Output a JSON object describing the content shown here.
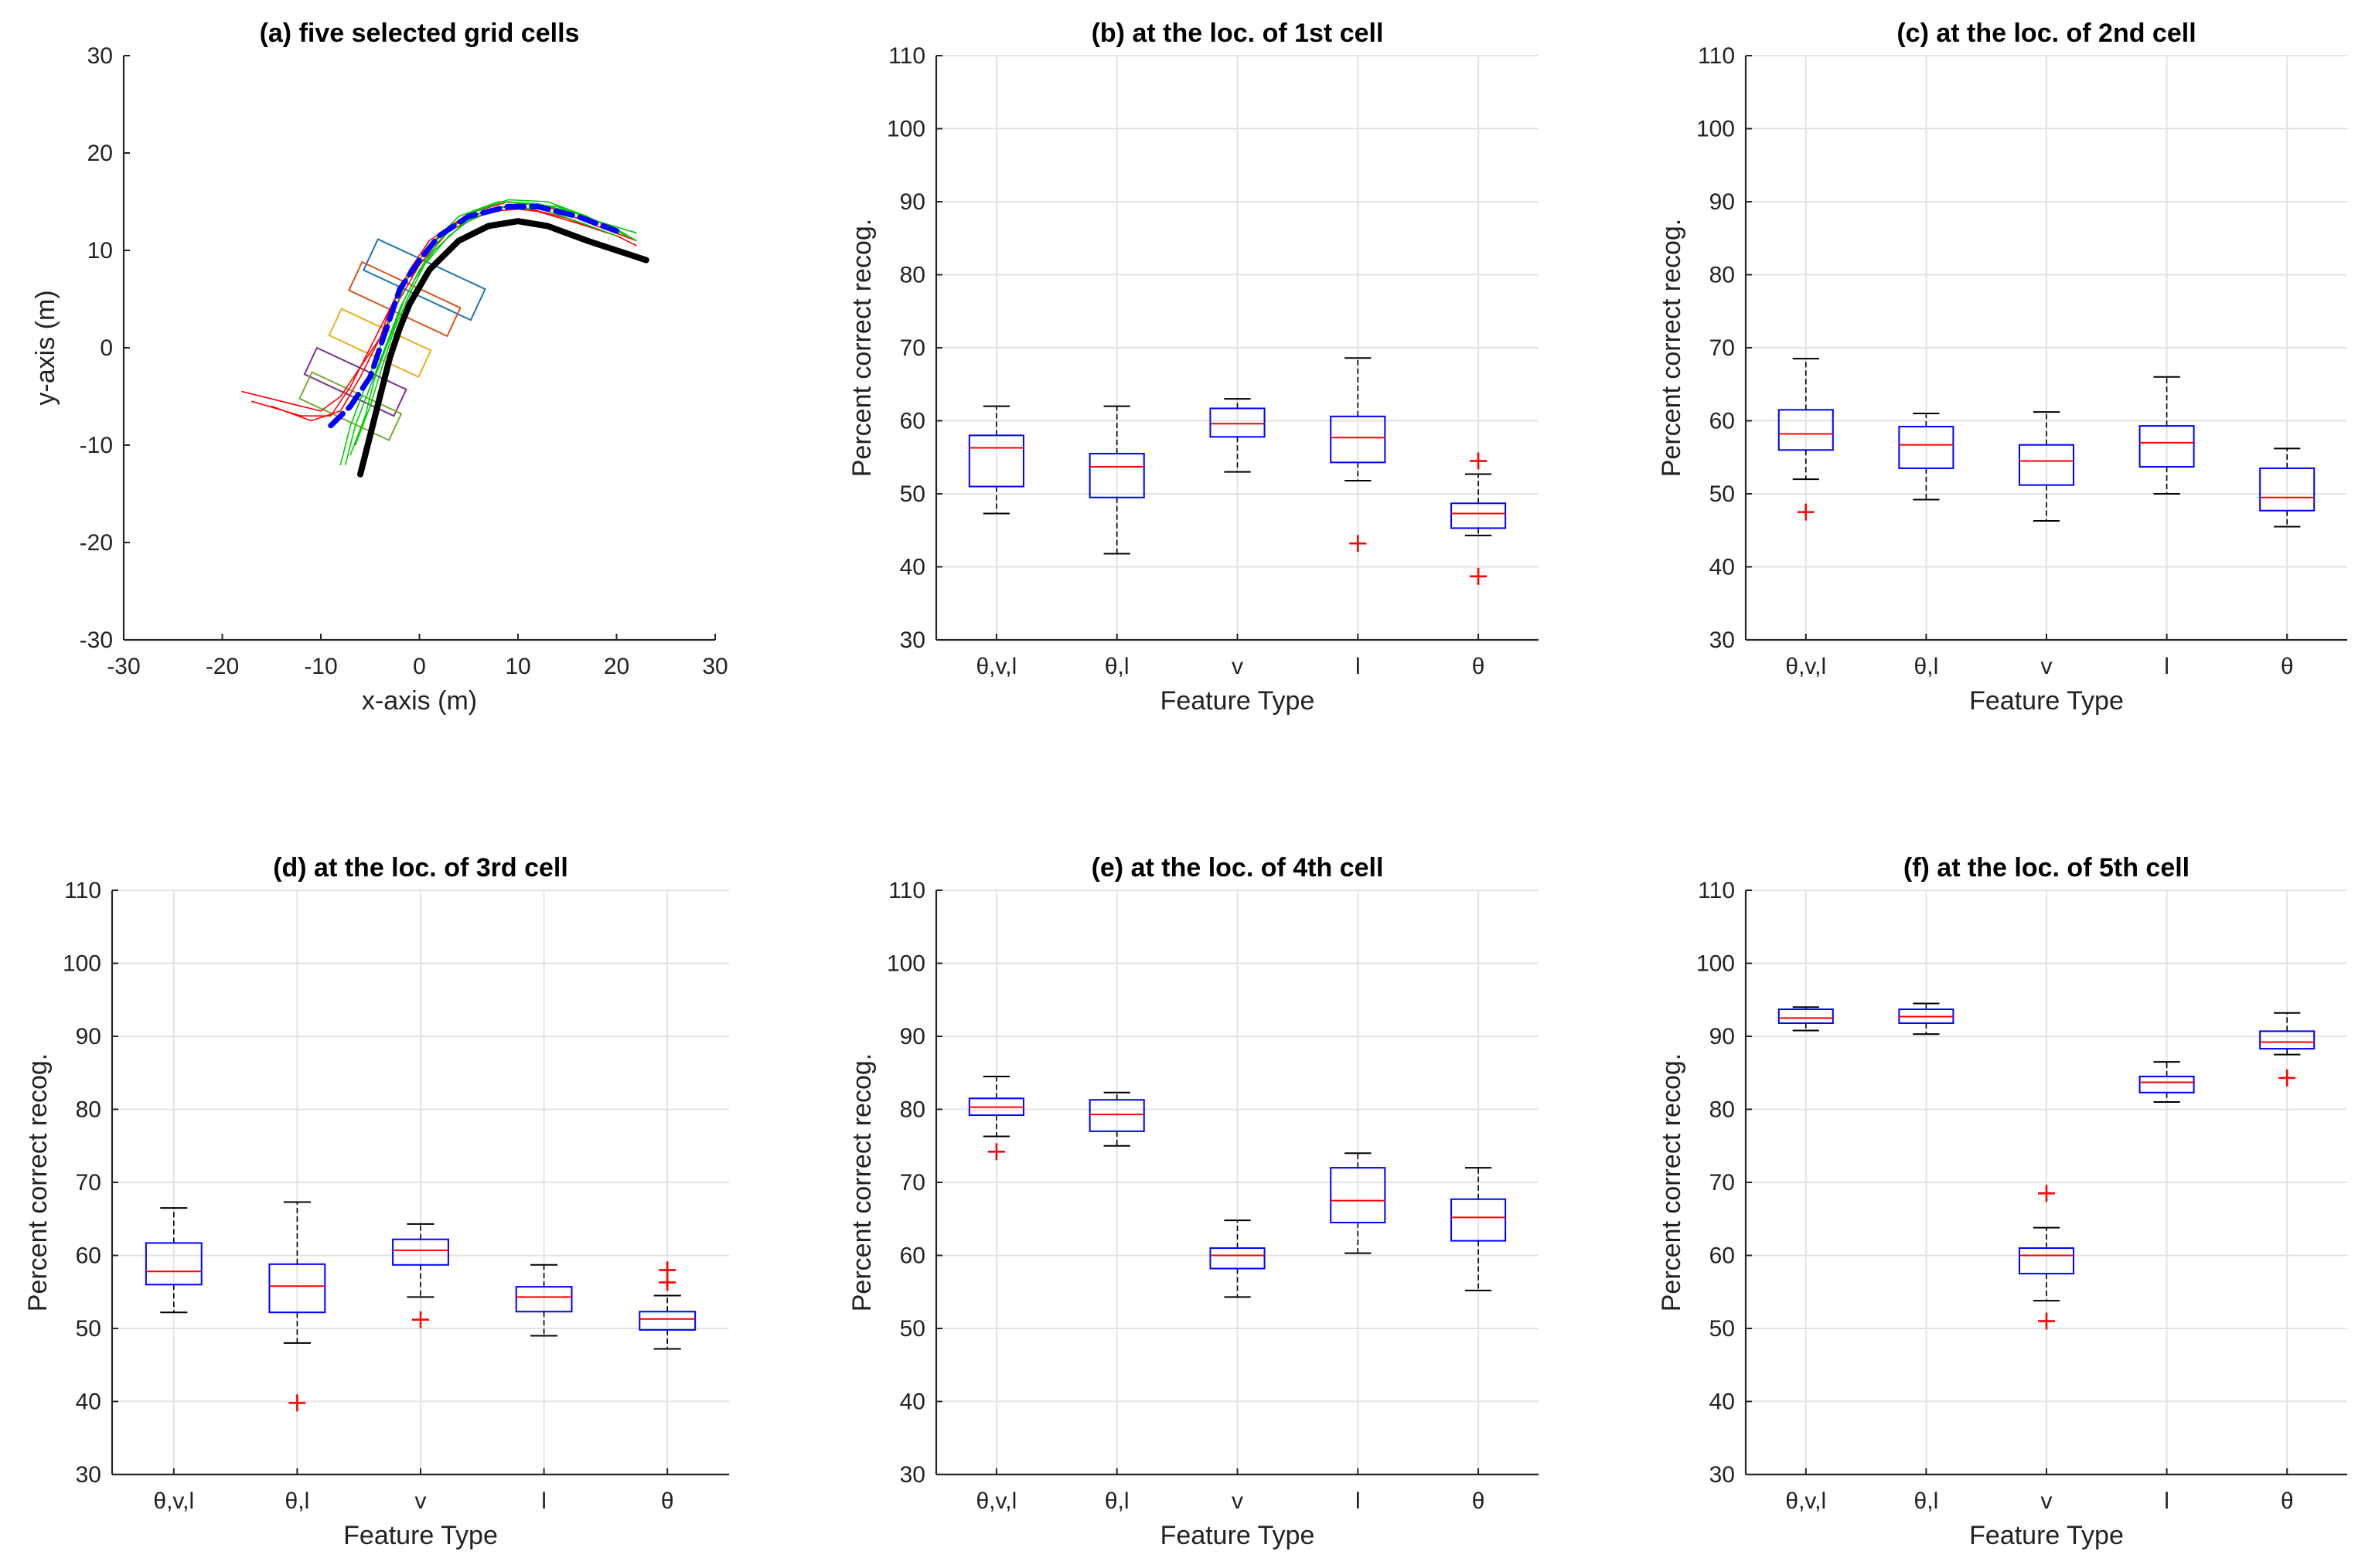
{
  "chart_data": [
    {
      "type": "line",
      "title": "(a) five selected grid cells",
      "xlabel": "x-axis (m)",
      "ylabel": "y-axis (m)",
      "xlim": [
        -30,
        30
      ],
      "ylim": [
        -30,
        30
      ],
      "xticks": [
        "-30",
        "-20",
        "-10",
        "0",
        "10",
        "20",
        "30"
      ],
      "yticks": [
        "-30",
        "-20",
        "-10",
        "0",
        "10",
        "20",
        "30"
      ],
      "grid": false,
      "series": [
        {
          "style": "black-thick",
          "color": "#000000",
          "points": [
            [
              -6,
              -13
            ],
            [
              -5,
              -9
            ],
            [
              -4,
              -5
            ],
            [
              -3,
              -1
            ],
            [
              -2,
              2
            ],
            [
              -1,
              4.5
            ],
            [
              1,
              8
            ],
            [
              4,
              11
            ],
            [
              7,
              12.5
            ],
            [
              10,
              13
            ],
            [
              13,
              12.5
            ],
            [
              17,
              11
            ],
            [
              20,
              10
            ],
            [
              23,
              9
            ]
          ]
        },
        {
          "style": "blue-dashed",
          "color": "#0000ff",
          "points": [
            [
              -9,
              -8
            ],
            [
              -7,
              -6
            ],
            [
              -5,
              -3
            ],
            [
              -4,
              0
            ],
            [
              -3,
              3
            ],
            [
              -2,
              6
            ],
            [
              0,
              9
            ],
            [
              2,
              11.5
            ],
            [
              5,
              13.5
            ],
            [
              9,
              14.5
            ],
            [
              12,
              14.5
            ],
            [
              16,
              13.5
            ],
            [
              20,
              12
            ]
          ]
        },
        {
          "style": "thin",
          "color": "#ff0000",
          "points": [
            [
              -18,
              -4.5
            ],
            [
              -14,
              -5.5
            ],
            [
              -10,
              -6.5
            ],
            [
              -8,
              -5
            ],
            [
              -6,
              -2
            ],
            [
              -4,
              1
            ],
            [
              -3,
              4
            ],
            [
              -1,
              7.5
            ],
            [
              1,
              10.5
            ],
            [
              4,
              13
            ],
            [
              8,
              14.5
            ],
            [
              12,
              14
            ],
            [
              16,
              12.8
            ],
            [
              20,
              11.5
            ],
            [
              22,
              10.5
            ]
          ]
        },
        {
          "style": "thin",
          "color": "#ff0000",
          "points": [
            [
              -17,
              -5.5
            ],
            [
              -12,
              -7
            ],
            [
              -9,
              -7
            ],
            [
              -7,
              -4
            ],
            [
              -5,
              0
            ],
            [
              -3,
              4
            ],
            [
              -1,
              8
            ],
            [
              1,
              11
            ],
            [
              5,
              13.8
            ],
            [
              9,
              15
            ],
            [
              13,
              14.5
            ],
            [
              18,
              12.5
            ],
            [
              22,
              11
            ]
          ]
        },
        {
          "style": "thin",
          "color": "#ff0000",
          "points": [
            [
              -15,
              -6
            ],
            [
              -11,
              -7.5
            ],
            [
              -8,
              -6.5
            ],
            [
              -6,
              -3
            ],
            [
              -4,
              1
            ],
            [
              -2,
              5
            ],
            [
              0,
              8.5
            ],
            [
              3,
              12
            ],
            [
              7,
              14
            ],
            [
              11,
              14.3
            ],
            [
              15,
              13.3
            ],
            [
              19,
              11.8
            ]
          ]
        },
        {
          "style": "thin",
          "color": "#00cc00",
          "points": [
            [
              -8,
              -12
            ],
            [
              -7,
              -8
            ],
            [
              -5.5,
              -4
            ],
            [
              -4,
              0
            ],
            [
              -2.5,
              4
            ],
            [
              -1,
              7.5
            ],
            [
              1,
              10.5
            ],
            [
              4,
              13.5
            ],
            [
              8,
              15
            ],
            [
              12,
              14.8
            ],
            [
              16,
              13.8
            ],
            [
              20,
              12.2
            ],
            [
              22,
              11
            ]
          ]
        },
        {
          "style": "thin",
          "color": "#00cc00",
          "points": [
            [
              -7,
              -11
            ],
            [
              -5.5,
              -7
            ],
            [
              -4.5,
              -3
            ],
            [
              -3,
              1
            ],
            [
              -1.5,
              5
            ],
            [
              0,
              8
            ],
            [
              2,
              11
            ],
            [
              5,
              13.8
            ],
            [
              9,
              15.2
            ],
            [
              13,
              15
            ],
            [
              17,
              13.5
            ],
            [
              21,
              11.5
            ]
          ]
        },
        {
          "style": "thin",
          "color": "#00cc00",
          "points": [
            [
              -7.5,
              -12
            ],
            [
              -6.5,
              -8
            ],
            [
              -5,
              -4
            ],
            [
              -3.5,
              0
            ],
            [
              -2,
              4
            ],
            [
              -0.5,
              7
            ],
            [
              1.5,
              10
            ],
            [
              4.5,
              12.8
            ],
            [
              8.5,
              14.5
            ],
            [
              12.5,
              14.2
            ],
            [
              16.5,
              12.8
            ],
            [
              20,
              11.5
            ]
          ]
        },
        {
          "style": "thin",
          "color": "#00cc00",
          "points": [
            [
              -6.5,
              -10
            ],
            [
              -5,
              -6
            ],
            [
              -3.8,
              -2
            ],
            [
              -2.5,
              2
            ],
            [
              -1,
              5.5
            ],
            [
              0.5,
              8.5
            ],
            [
              3,
              11.5
            ],
            [
              6,
              13.8
            ],
            [
              10,
              14.8
            ],
            [
              14,
              14.5
            ],
            [
              18,
              13
            ],
            [
              22,
              11.8
            ]
          ]
        }
      ],
      "cells": [
        {
          "index": 1,
          "color": "#1f77b4",
          "center": [
            0.5,
            7
          ],
          "size": [
            12,
            3.5
          ],
          "angle": -25
        },
        {
          "index": 2,
          "color": "#d95319",
          "center": [
            -1.5,
            5
          ],
          "size": [
            11,
            3.2
          ],
          "angle": -25
        },
        {
          "index": 3,
          "color": "#edb120",
          "center": [
            -4,
            0.5
          ],
          "size": [
            10,
            3
          ],
          "angle": -25
        },
        {
          "index": 4,
          "color": "#7e2f8e",
          "center": [
            -6.5,
            -3.5
          ],
          "size": [
            10,
            3
          ],
          "angle": -25
        },
        {
          "index": 5,
          "color": "#77ac30",
          "center": [
            -7,
            -6
          ],
          "size": [
            10,
            3
          ],
          "angle": -25
        }
      ]
    },
    {
      "type": "box",
      "title": "(b) at the loc. of 1st cell",
      "xlabel": "Feature Type",
      "ylabel": "Percent correct recog.",
      "ylim": [
        30,
        110
      ],
      "yticks": [
        "30",
        "40",
        "50",
        "60",
        "70",
        "80",
        "90",
        "100",
        "110"
      ],
      "categories": [
        "θ,v,l",
        "θ,l",
        "v",
        "l",
        "θ"
      ],
      "grid": true,
      "boxes": [
        {
          "whisker_low": 47.3,
          "q1": 51.0,
          "median": 56.3,
          "q3": 58.0,
          "whisker_high": 62.0,
          "outliers": []
        },
        {
          "whisker_low": 41.8,
          "q1": 49.5,
          "median": 53.7,
          "q3": 55.5,
          "whisker_high": 62.0,
          "outliers": []
        },
        {
          "whisker_low": 53.0,
          "q1": 57.8,
          "median": 59.6,
          "q3": 61.7,
          "whisker_high": 63.0,
          "outliers": []
        },
        {
          "whisker_low": 51.8,
          "q1": 54.3,
          "median": 57.7,
          "q3": 60.6,
          "whisker_high": 68.6,
          "outliers": [
            43.2
          ]
        },
        {
          "whisker_low": 44.3,
          "q1": 45.3,
          "median": 47.3,
          "q3": 48.7,
          "whisker_high": 52.7,
          "outliers": [
            54.5,
            38.7
          ]
        }
      ]
    },
    {
      "type": "box",
      "title": "(c) at the loc. of 2nd cell",
      "xlabel": "Feature Type",
      "ylabel": "Percent correct recog.",
      "ylim": [
        30,
        110
      ],
      "yticks": [
        "30",
        "40",
        "50",
        "60",
        "70",
        "80",
        "90",
        "100",
        "110"
      ],
      "categories": [
        "θ,v,l",
        "θ,l",
        "v",
        "l",
        "θ"
      ],
      "grid": true,
      "boxes": [
        {
          "whisker_low": 52.0,
          "q1": 56.0,
          "median": 58.2,
          "q3": 61.5,
          "whisker_high": 68.5,
          "outliers": [
            47.5
          ]
        },
        {
          "whisker_low": 49.2,
          "q1": 53.5,
          "median": 56.7,
          "q3": 59.2,
          "whisker_high": 61.0,
          "outliers": []
        },
        {
          "whisker_low": 46.3,
          "q1": 51.2,
          "median": 54.5,
          "q3": 56.7,
          "whisker_high": 61.2,
          "outliers": []
        },
        {
          "whisker_low": 50.0,
          "q1": 53.7,
          "median": 57.0,
          "q3": 59.3,
          "whisker_high": 66.0,
          "outliers": []
        },
        {
          "whisker_low": 45.5,
          "q1": 47.7,
          "median": 49.5,
          "q3": 53.5,
          "whisker_high": 56.2,
          "outliers": []
        }
      ]
    },
    {
      "type": "box",
      "title": "(d) at the loc. of 3rd cell",
      "xlabel": "Feature Type",
      "ylabel": "Percent correct recog.",
      "ylim": [
        30,
        110
      ],
      "yticks": [
        "30",
        "40",
        "50",
        "60",
        "70",
        "80",
        "90",
        "100",
        "110"
      ],
      "categories": [
        "θ,v,l",
        "θ,l",
        "v",
        "l",
        "θ"
      ],
      "grid": true,
      "boxes": [
        {
          "whisker_low": 52.2,
          "q1": 56.0,
          "median": 57.8,
          "q3": 61.7,
          "whisker_high": 66.5,
          "outliers": []
        },
        {
          "whisker_low": 48.0,
          "q1": 52.2,
          "median": 55.8,
          "q3": 58.8,
          "whisker_high": 67.3,
          "outliers": [
            39.8
          ]
        },
        {
          "whisker_low": 54.3,
          "q1": 58.7,
          "median": 60.7,
          "q3": 62.2,
          "whisker_high": 64.3,
          "outliers": [
            51.2
          ]
        },
        {
          "whisker_low": 49.0,
          "q1": 52.3,
          "median": 54.3,
          "q3": 55.7,
          "whisker_high": 58.7,
          "outliers": []
        },
        {
          "whisker_low": 47.2,
          "q1": 49.8,
          "median": 51.3,
          "q3": 52.3,
          "whisker_high": 54.5,
          "outliers": [
            58.0,
            56.3
          ]
        }
      ]
    },
    {
      "type": "box",
      "title": "(e) at the loc. of 4th cell",
      "xlabel": "Feature Type",
      "ylabel": "Percent correct recog.",
      "ylim": [
        30,
        110
      ],
      "yticks": [
        "30",
        "40",
        "50",
        "60",
        "70",
        "80",
        "90",
        "100",
        "110"
      ],
      "categories": [
        "θ,v,l",
        "θ,l",
        "v",
        "l",
        "θ"
      ],
      "grid": true,
      "boxes": [
        {
          "whisker_low": 76.3,
          "q1": 79.2,
          "median": 80.3,
          "q3": 81.5,
          "whisker_high": 84.5,
          "outliers": [
            74.2
          ]
        },
        {
          "whisker_low": 75.0,
          "q1": 77.0,
          "median": 79.3,
          "q3": 81.3,
          "whisker_high": 82.3,
          "outliers": []
        },
        {
          "whisker_low": 54.3,
          "q1": 58.2,
          "median": 60.0,
          "q3": 61.0,
          "whisker_high": 64.8,
          "outliers": []
        },
        {
          "whisker_low": 60.3,
          "q1": 64.5,
          "median": 67.5,
          "q3": 72.0,
          "whisker_high": 74.0,
          "outliers": []
        },
        {
          "whisker_low": 55.2,
          "q1": 62.0,
          "median": 65.2,
          "q3": 67.7,
          "whisker_high": 72.0,
          "outliers": []
        }
      ]
    },
    {
      "type": "box",
      "title": "(f) at the loc. of 5th cell",
      "xlabel": "Feature Type",
      "ylabel": "Percent correct recog.",
      "ylim": [
        30,
        110
      ],
      "yticks": [
        "30",
        "40",
        "50",
        "60",
        "70",
        "80",
        "90",
        "100",
        "110"
      ],
      "categories": [
        "θ,v,l",
        "θ,l",
        "v",
        "l",
        "θ"
      ],
      "grid": true,
      "boxes": [
        {
          "whisker_low": 90.8,
          "q1": 91.8,
          "median": 92.5,
          "q3": 93.7,
          "whisker_high": 94.0,
          "outliers": []
        },
        {
          "whisker_low": 90.3,
          "q1": 91.8,
          "median": 92.7,
          "q3": 93.7,
          "whisker_high": 94.5,
          "outliers": []
        },
        {
          "whisker_low": 53.8,
          "q1": 57.5,
          "median": 60.0,
          "q3": 61.0,
          "whisker_high": 63.8,
          "outliers": [
            68.5,
            51.0
          ]
        },
        {
          "whisker_low": 81.0,
          "q1": 82.3,
          "median": 83.7,
          "q3": 84.5,
          "whisker_high": 86.5,
          "outliers": []
        },
        {
          "whisker_low": 87.5,
          "q1": 88.3,
          "median": 89.2,
          "q3": 90.7,
          "whisker_high": 93.2,
          "outliers": [
            84.3
          ]
        }
      ]
    }
  ]
}
